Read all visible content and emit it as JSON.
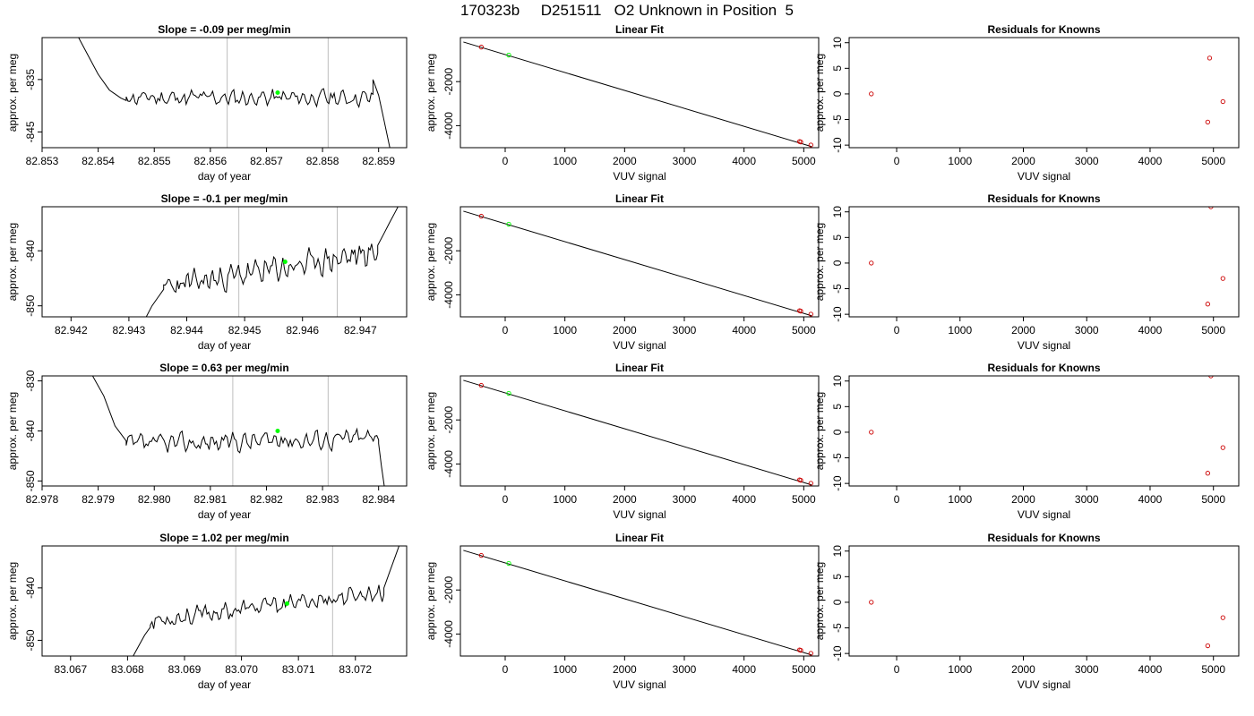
{
  "figure": {
    "title": "170323b     D251511   O2 Unknown in Position  5"
  },
  "colors": {
    "line": "#000000",
    "marker_point": "#00ff00",
    "known_point": "#cc0000",
    "vline": "#bebebe",
    "axis": "#000000"
  },
  "chart_data": [
    {
      "type": "line",
      "title": "Slope =  -0.09  per meg/min",
      "xlabel": "day of year",
      "ylabel": "approx. per meg",
      "xlim": [
        82.853,
        82.8595
      ],
      "ylim": [
        -848,
        -827
      ],
      "xticks": [
        82.853,
        82.854,
        82.855,
        82.856,
        82.857,
        82.858,
        82.859
      ],
      "xtick_labels": [
        "82.853",
        "82.854",
        "82.855",
        "82.856",
        "82.857",
        "82.858",
        "82.859"
      ],
      "yticks": [
        -835,
        -845
      ],
      "ytick_labels": [
        "-835",
        "-845"
      ],
      "vlines": [
        82.8563,
        82.8581
      ],
      "highlight_point": {
        "x": 82.8572,
        "y": -837.5
      },
      "trace": {
        "x_start": 82.8545,
        "x_end": 82.8589,
        "mean": -838.5,
        "amp": 1.6,
        "trend": 0.0,
        "seed": 11
      },
      "tails": {
        "left": {
          "x": [
            82.8536,
            82.8538,
            82.854,
            82.8542,
            82.8544,
            82.8545
          ],
          "y": [
            -826,
            -830,
            -834,
            -837,
            -838.5,
            -839
          ]
        },
        "right": {
          "x": [
            82.8589,
            82.859,
            82.8591,
            82.8592
          ],
          "y": [
            -835,
            -838,
            -843,
            -848
          ]
        }
      }
    },
    {
      "type": "scatter",
      "title": "Linear Fit",
      "xlabel": "VUV signal",
      "ylabel": "approx. per meg",
      "xlim": [
        -750,
        5250
      ],
      "ylim": [
        -5000,
        0
      ],
      "xticks": [
        0,
        1000,
        2000,
        3000,
        4000,
        5000
      ],
      "xtick_labels": [
        "0",
        "1000",
        "2000",
        "3000",
        "4000",
        "5000"
      ],
      "yticks": [
        -2000,
        -4000
      ],
      "ytick_labels": [
        "-2000",
        "-4000"
      ],
      "fit_line": {
        "x": [
          -700,
          5130
        ],
        "y": [
          -200,
          -4950
        ]
      },
      "knowns": {
        "x": [
          -400,
          4930,
          4950,
          5120
        ],
        "y": [
          -430,
          -4720,
          -4740,
          -4880
        ]
      },
      "unknowns": {
        "x": [
          60
        ],
        "y": [
          -795
        ]
      }
    },
    {
      "type": "scatter",
      "title": "Residuals for Knowns",
      "xlabel": "VUV signal",
      "ylabel": "approx. per meg",
      "xlim": [
        -750,
        5400
      ],
      "ylim": [
        -10.5,
        11
      ],
      "xticks": [
        0,
        1000,
        2000,
        3000,
        4000,
        5000
      ],
      "xtick_labels": [
        "0",
        "1000",
        "2000",
        "3000",
        "4000",
        "5000"
      ],
      "yticks": [
        10,
        5,
        0,
        -5,
        -10
      ],
      "ytick_labels": [
        "10",
        "5",
        "0",
        "-5",
        "-10"
      ],
      "knowns": {
        "x": [
          -400,
          4940,
          4910,
          5150
        ],
        "y": [
          0,
          7,
          -5.5,
          -1.5
        ]
      }
    },
    {
      "type": "line",
      "title": "Slope =  -0.1  per meg/min",
      "xlabel": "day of year",
      "ylabel": "approx. per meg",
      "xlim": [
        82.9415,
        82.9478
      ],
      "ylim": [
        -852,
        -832
      ],
      "xticks": [
        82.942,
        82.943,
        82.944,
        82.945,
        82.946,
        82.947
      ],
      "xtick_labels": [
        "82.942",
        "82.943",
        "82.944",
        "82.945",
        "82.946",
        "82.947"
      ],
      "yticks": [
        -840,
        -850
      ],
      "ytick_labels": [
        "-840",
        "-850"
      ],
      "vlines": [
        82.9449,
        82.9466
      ],
      "highlight_point": {
        "x": 82.9457,
        "y": -842
      },
      "trace": {
        "x_start": 82.9436,
        "x_end": 82.9473,
        "mean": -843.5,
        "amp": 2.4,
        "trend": 6.5,
        "seed": 23
      },
      "tails": {
        "left": {
          "x": [
            82.9432,
            82.9433,
            82.9434,
            82.9435,
            82.9436
          ],
          "y": [
            -853,
            -852,
            -850,
            -848.5,
            -847
          ]
        },
        "right": {
          "x": [
            82.9473,
            82.9474,
            82.9475,
            82.9476,
            82.9477
          ],
          "y": [
            -839,
            -837,
            -835,
            -833,
            -831
          ]
        }
      }
    },
    {
      "type": "scatter",
      "title": "Linear Fit",
      "xlabel": "VUV signal",
      "ylabel": "approx. per meg",
      "xlim": [
        -750,
        5250
      ],
      "ylim": [
        -5000,
        0
      ],
      "xticks": [
        0,
        1000,
        2000,
        3000,
        4000,
        5000
      ],
      "xtick_labels": [
        "0",
        "1000",
        "2000",
        "3000",
        "4000",
        "5000"
      ],
      "yticks": [
        -2000,
        -4000
      ],
      "ytick_labels": [
        "-2000",
        "-4000"
      ],
      "fit_line": {
        "x": [
          -700,
          5130
        ],
        "y": [
          -200,
          -4950
        ]
      },
      "knowns": {
        "x": [
          -400,
          4930,
          4950,
          5120
        ],
        "y": [
          -430,
          -4720,
          -4740,
          -4880
        ]
      },
      "unknowns": {
        "x": [
          60
        ],
        "y": [
          -795
        ]
      }
    },
    {
      "type": "scatter",
      "title": "Residuals for Knowns",
      "xlabel": "VUV signal",
      "ylabel": "approx. per meg",
      "xlim": [
        -750,
        5400
      ],
      "ylim": [
        -10.5,
        11
      ],
      "xticks": [
        0,
        1000,
        2000,
        3000,
        4000,
        5000
      ],
      "xtick_labels": [
        "0",
        "1000",
        "2000",
        "3000",
        "4000",
        "5000"
      ],
      "yticks": [
        10,
        5,
        0,
        -5,
        -10
      ],
      "ytick_labels": [
        "10",
        "5",
        "0",
        "-5",
        "-10"
      ],
      "knowns": {
        "x": [
          -400,
          4960,
          4910,
          5150
        ],
        "y": [
          0,
          11,
          -8,
          -3
        ]
      }
    },
    {
      "type": "line",
      "title": "Slope =  0.63  per meg/min",
      "xlabel": "day of year",
      "ylabel": "approx. per meg",
      "xlim": [
        82.978,
        82.9845
      ],
      "ylim": [
        -851,
        -829
      ],
      "xticks": [
        82.978,
        82.979,
        82.98,
        82.981,
        82.982,
        82.983,
        82.984
      ],
      "xtick_labels": [
        "82.978",
        "82.979",
        "82.980",
        "82.981",
        "82.982",
        "82.983",
        "82.984"
      ],
      "yticks": [
        -830,
        -840,
        -850
      ],
      "ytick_labels": [
        "-830",
        "-840",
        "-850"
      ],
      "vlines": [
        82.9814,
        82.9831
      ],
      "highlight_point": {
        "x": 82.9822,
        "y": -840
      },
      "trace": {
        "x_start": 82.9795,
        "x_end": 82.984,
        "mean": -842,
        "amp": 2.0,
        "trend": 1.5,
        "seed": 37
      },
      "tails": {
        "left": {
          "x": [
            82.9789,
            82.9791,
            82.9793,
            82.9795
          ],
          "y": [
            -829,
            -833,
            -839,
            -842
          ]
        },
        "right": {
          "x": [
            82.984,
            82.98405,
            82.9841
          ],
          "y": [
            -842.5,
            -847,
            -851
          ]
        }
      }
    },
    {
      "type": "scatter",
      "title": "Linear Fit",
      "xlabel": "VUV signal",
      "ylabel": "approx. per meg",
      "xlim": [
        -750,
        5250
      ],
      "ylim": [
        -5000,
        0
      ],
      "xticks": [
        0,
        1000,
        2000,
        3000,
        4000,
        5000
      ],
      "xtick_labels": [
        "0",
        "1000",
        "2000",
        "3000",
        "4000",
        "5000"
      ],
      "yticks": [
        -2000,
        -4000
      ],
      "ytick_labels": [
        "-2000",
        "-4000"
      ],
      "fit_line": {
        "x": [
          -700,
          5130
        ],
        "y": [
          -200,
          -4950
        ]
      },
      "knowns": {
        "x": [
          -400,
          4930,
          4950,
          5120
        ],
        "y": [
          -430,
          -4720,
          -4740,
          -4880
        ]
      },
      "unknowns": {
        "x": [
          60
        ],
        "y": [
          -795
        ]
      }
    },
    {
      "type": "scatter",
      "title": "Residuals for Knowns",
      "xlabel": "VUV signal",
      "ylabel": "approx. per meg",
      "xlim": [
        -750,
        5400
      ],
      "ylim": [
        -10.5,
        11
      ],
      "xticks": [
        0,
        1000,
        2000,
        3000,
        4000,
        5000
      ],
      "xtick_labels": [
        "0",
        "1000",
        "2000",
        "3000",
        "4000",
        "5000"
      ],
      "yticks": [
        10,
        5,
        0,
        -5,
        -10
      ],
      "ytick_labels": [
        "10",
        "5",
        "0",
        "-5",
        "-10"
      ],
      "knowns": {
        "x": [
          -400,
          4960,
          4910,
          5150
        ],
        "y": [
          0,
          11,
          -8,
          -3
        ]
      }
    },
    {
      "type": "line",
      "title": "Slope =  1.02  per meg/min",
      "xlabel": "day of year",
      "ylabel": "approx. per meg",
      "xlim": [
        83.0665,
        83.0729
      ],
      "ylim": [
        -853,
        -832
      ],
      "xticks": [
        83.067,
        83.068,
        83.069,
        83.07,
        83.071,
        83.072
      ],
      "xtick_labels": [
        "83.067",
        "83.068",
        "83.069",
        "83.070",
        "83.071",
        "83.072"
      ],
      "yticks": [
        -840,
        -850
      ],
      "ytick_labels": [
        "-840",
        "-850"
      ],
      "vlines": [
        83.0699,
        83.0716
      ],
      "highlight_point": {
        "x": 83.0708,
        "y": -843
      },
      "trace": {
        "x_start": 83.0684,
        "x_end": 83.0725,
        "mean": -843.5,
        "amp": 1.8,
        "trend": 5.5,
        "seed": 53
      },
      "tails": {
        "left": {
          "x": [
            83.0681,
            83.0682,
            83.0683,
            83.0684
          ],
          "y": [
            -853,
            -851,
            -849,
            -847.5
          ]
        },
        "right": {
          "x": [
            83.0725,
            83.0726,
            83.0727,
            83.0728
          ],
          "y": [
            -840,
            -837,
            -834,
            -831
          ]
        }
      }
    },
    {
      "type": "scatter",
      "title": "Linear Fit",
      "xlabel": "VUV signal",
      "ylabel": "approx. per meg",
      "xlim": [
        -750,
        5250
      ],
      "ylim": [
        -5000,
        0
      ],
      "xticks": [
        0,
        1000,
        2000,
        3000,
        4000,
        5000
      ],
      "xtick_labels": [
        "0",
        "1000",
        "2000",
        "3000",
        "4000",
        "5000"
      ],
      "yticks": [
        -2000,
        -4000
      ],
      "ytick_labels": [
        "-2000",
        "-4000"
      ],
      "fit_line": {
        "x": [
          -700,
          5130
        ],
        "y": [
          -200,
          -4950
        ]
      },
      "knowns": {
        "x": [
          -400,
          4930,
          4950,
          5120
        ],
        "y": [
          -430,
          -4720,
          -4740,
          -4880
        ]
      },
      "unknowns": {
        "x": [
          60
        ],
        "y": [
          -795
        ]
      }
    },
    {
      "type": "scatter",
      "title": "Residuals for Knowns",
      "xlabel": "VUV signal",
      "ylabel": "approx. per meg",
      "xlim": [
        -750,
        5400
      ],
      "ylim": [
        -10.5,
        11
      ],
      "xticks": [
        0,
        1000,
        2000,
        3000,
        4000,
        5000
      ],
      "xtick_labels": [
        "0",
        "1000",
        "2000",
        "3000",
        "4000",
        "5000"
      ],
      "yticks": [
        10,
        5,
        0,
        -5,
        -10
      ],
      "ytick_labels": [
        "10",
        "5",
        "0",
        "-5",
        "-10"
      ],
      "knowns": {
        "x": [
          -400,
          4910,
          5150
        ],
        "y": [
          0,
          -8.5,
          -3
        ]
      }
    }
  ]
}
